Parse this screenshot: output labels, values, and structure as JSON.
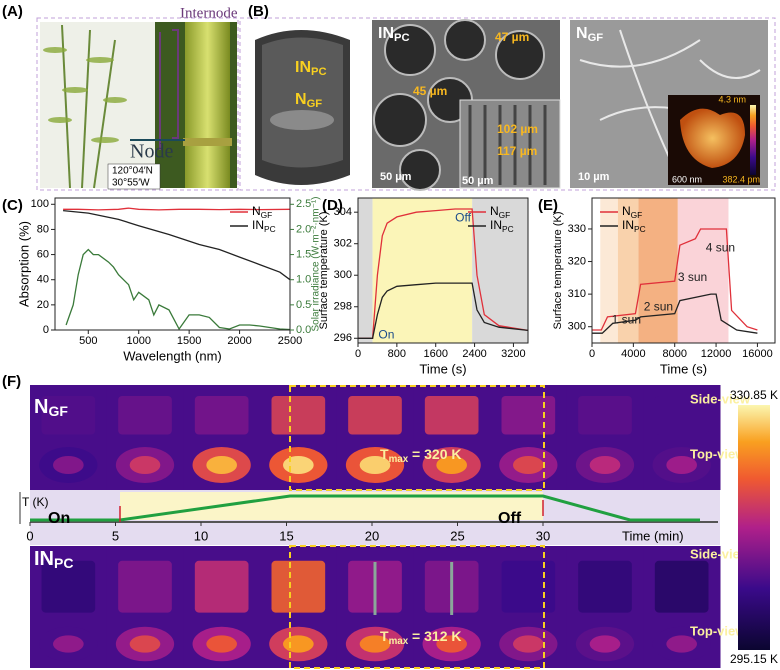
{
  "panel_a": {
    "label": "(A)",
    "internode": "Internode",
    "node": "Node",
    "lat": "120°04′N",
    "lon": "30°55′W"
  },
  "panel_b": {
    "label": "(B)",
    "model_inpc": "INPC",
    "model_ngf": "NGF",
    "sem1_title": "INPC",
    "sem1_d1": "47 µm",
    "sem1_d2": "45 µm",
    "sem1_d3": "102 µm",
    "sem1_d4": "117 µm",
    "sem1_scale1": "50 µm",
    "sem1_scale2": "50 µm",
    "sem2_title": "NGF",
    "sem2_scale": "10 µm",
    "afm_max": "4.3 nm",
    "afm_min": "382.4 pm",
    "afm_scale": "600 nm"
  },
  "chart_data": [
    {
      "type": "line",
      "panel": "(C)",
      "xlabel": "Wavelength (nm)",
      "ylabel": "Absorption (%)",
      "y2label": "Solar irradiance (W·m⁻²·nm⁻¹)",
      "y2color": "#3a7a3a",
      "xlim": [
        170,
        2500
      ],
      "xticks": [
        500,
        1000,
        1500,
        2000,
        2500
      ],
      "ylim": [
        0,
        105
      ],
      "yticks": [
        0,
        20,
        40,
        60,
        80,
        100
      ],
      "y2lim": [
        0,
        2.625
      ],
      "y2ticks": [
        {
          "value": 0,
          "label": "0.0"
        },
        0.5,
        {
          "value": 1,
          "label": "1.0"
        },
        1.5,
        {
          "value": 2,
          "label": "2.0"
        },
        2.5
      ],
      "legend": "upper right",
      "series": [
        {
          "name": "NGF",
          "color": "#e0303a",
          "x": [
            250,
            400,
            600,
            800,
            900,
            1000,
            1200,
            1400,
            1600,
            1800,
            2000,
            2200,
            2500
          ],
          "values": [
            96,
            96,
            95.5,
            96,
            97,
            96,
            95.5,
            96,
            96,
            95.8,
            96,
            95.8,
            96
          ]
        },
        {
          "name": "INPC",
          "color": "#222222",
          "x": [
            250,
            500,
            800,
            1000,
            1300,
            1600,
            1800,
            2000,
            2200,
            2400,
            2500
          ],
          "values": [
            95,
            93,
            88,
            83,
            76,
            68,
            64,
            58,
            52,
            46,
            40
          ]
        },
        {
          "color": "#3a7a3a",
          "axis": "y2",
          "x": [
            280,
            350,
            400,
            450,
            500,
            550,
            600,
            700,
            750,
            800,
            900,
            950,
            1000,
            1100,
            1150,
            1200,
            1300,
            1400,
            1500,
            1600,
            1700,
            1800,
            1900,
            2000,
            2100,
            2200,
            2300,
            2400,
            2500
          ],
          "values": [
            0.1,
            0.5,
            1.1,
            1.5,
            1.6,
            1.5,
            1.5,
            1.35,
            1.25,
            1.1,
            0.9,
            0.6,
            0.75,
            0.6,
            0.3,
            0.5,
            0.4,
            0.02,
            0.3,
            0.3,
            0.25,
            0.05,
            0.02,
            0.1,
            0.1,
            0.08,
            0.05,
            0.02,
            0.01
          ]
        }
      ]
    },
    {
      "type": "line",
      "panel": "(D)",
      "xlabel": "Time (s)",
      "ylabel": "Surface temperature (K)",
      "xlim": [
        0,
        3500
      ],
      "xticks": [
        0,
        800,
        1600,
        2400,
        3200
      ],
      "ylim": [
        295.7,
        304.9
      ],
      "yticks": [
        296,
        298,
        300,
        302,
        304
      ],
      "legend": "upper right",
      "spans": [
        {
          "x": [
            0,
            300
          ],
          "color": "#d9d9d9"
        },
        {
          "x": [
            300,
            2350
          ],
          "color": "#fbf5b8"
        },
        {
          "x": [
            2350,
            3500
          ],
          "color": "#d9d9d9"
        }
      ],
      "annotations": [
        {
          "text": "On",
          "x": 420,
          "y": 296.2
        },
        {
          "text": "Off",
          "x": 2000,
          "y": 303.6
        }
      ],
      "series": [
        {
          "name": "NGF",
          "color": "#e0303a",
          "x": [
            0,
            300,
            400,
            500,
            600,
            800,
            1200,
            1600,
            2000,
            2350,
            2450,
            2600,
            2900,
            3500
          ],
          "values": [
            296,
            296,
            300,
            302.5,
            303.3,
            303.7,
            304,
            304.1,
            304.2,
            304.2,
            300,
            297.5,
            296.8,
            296.5
          ]
        },
        {
          "name": "INPC",
          "color": "#222222",
          "x": [
            0,
            300,
            400,
            500,
            600,
            800,
            1200,
            1600,
            2000,
            2350,
            2450,
            2600,
            2900,
            3500
          ],
          "values": [
            296,
            296,
            297.5,
            298.6,
            299,
            299.3,
            299.4,
            299.5,
            299.5,
            299.5,
            297.8,
            297,
            296.7,
            296.5
          ]
        }
      ]
    },
    {
      "type": "line",
      "panel": "(E)",
      "xlabel": "Time (s)",
      "ylabel": "Surface temperature (K)",
      "xlim": [
        0,
        17700
      ],
      "xticks": [
        0,
        4000,
        8000,
        12000,
        16000
      ],
      "ylim": [
        295,
        339.5
      ],
      "yticks": [
        300,
        310,
        320,
        330
      ],
      "legend": "upper left",
      "spans": [
        {
          "x": [
            800,
            2500
          ],
          "color": "#fce9d6"
        },
        {
          "x": [
            2500,
            4500
          ],
          "color": "#f9d2ac"
        },
        {
          "x": [
            4500,
            8300
          ],
          "color": "#f4b182"
        },
        {
          "x": [
            8300,
            13200
          ],
          "color": "#fad3d8"
        }
      ],
      "annotations": [
        {
          "text": "1 sun",
          "x": 1900,
          "y": 302
        },
        {
          "text": "2 sun",
          "x": 5000,
          "y": 306
        },
        {
          "text": "3 sun",
          "x": 8300,
          "y": 315
        },
        {
          "text": "4 sun",
          "x": 11000,
          "y": 324
        }
      ],
      "series": [
        {
          "name": "NGF",
          "color": "#e0303a",
          "x": [
            0,
            900,
            1500,
            4200,
            4700,
            8000,
            8500,
            10000,
            10500,
            13000,
            13500,
            15000,
            16000
          ],
          "values": [
            299,
            299,
            303,
            304,
            313,
            314,
            325,
            327,
            330,
            330,
            305,
            300,
            299
          ]
        },
        {
          "name": "INPC",
          "color": "#222222",
          "x": [
            0,
            1000,
            2000,
            4200,
            4700,
            8000,
            8500,
            11500,
            12000,
            12500,
            14000,
            16000
          ],
          "values": [
            298,
            298,
            301,
            302,
            303,
            304,
            308,
            310,
            310,
            302,
            299,
            298
          ]
        }
      ]
    }
  ],
  "panel_f": {
    "label": "(F)",
    "row1": "NGF",
    "row2": "INPC",
    "side": "Side-view",
    "top": "Top-view",
    "side2": "Side-view",
    "top2": "Top-view",
    "tmax1": "Tmax = 320 K",
    "tmax2": "Tmax = 312 K",
    "cbar_max": "330.85 K",
    "cbar_min": "295.15 K",
    "timeline": {
      "ylabel": "T (K)",
      "on": "On",
      "off": "Off",
      "xlabel": "Time (min)",
      "xlim": [
        0,
        40
      ],
      "xticks": [
        0,
        5,
        10,
        15,
        20,
        25,
        30
      ]
    }
  }
}
